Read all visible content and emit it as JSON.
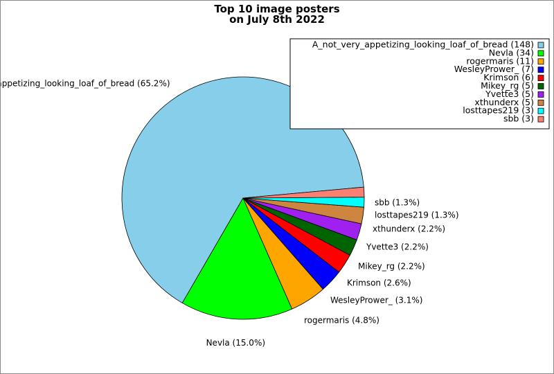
{
  "chart_data": {
    "type": "pie",
    "title_lines": [
      "Top 10 image posters",
      "on July 8th 2022"
    ],
    "slices": [
      {
        "name": "A_not_very_appetizing_looking_loaf_of_bread",
        "value": 148,
        "percent": "65.2%",
        "color": "#87ceeb"
      },
      {
        "name": "Nevla",
        "value": 34,
        "percent": "15.0%",
        "color": "#00ff00"
      },
      {
        "name": "rogermaris",
        "value": 11,
        "percent": "4.8%",
        "color": "#ffa500"
      },
      {
        "name": "WesleyPrower_",
        "value": 7,
        "percent": "3.1%",
        "color": "#0000ff"
      },
      {
        "name": "Krimson",
        "value": 6,
        "percent": "2.6%",
        "color": "#ff0000"
      },
      {
        "name": "Mikey_rg",
        "value": 5,
        "percent": "2.2%",
        "color": "#006400"
      },
      {
        "name": "Yvette3",
        "value": 5,
        "percent": "2.2%",
        "color": "#a020f0"
      },
      {
        "name": "xthunderx",
        "value": 5,
        "percent": "2.2%",
        "color": "#cd853f"
      },
      {
        "name": "losttapes219",
        "value": 3,
        "percent": "1.3%",
        "color": "#00ffff"
      },
      {
        "name": "sbb",
        "value": 3,
        "percent": "1.3%",
        "color": "#fa8072"
      }
    ],
    "legend_position": "top-right"
  }
}
